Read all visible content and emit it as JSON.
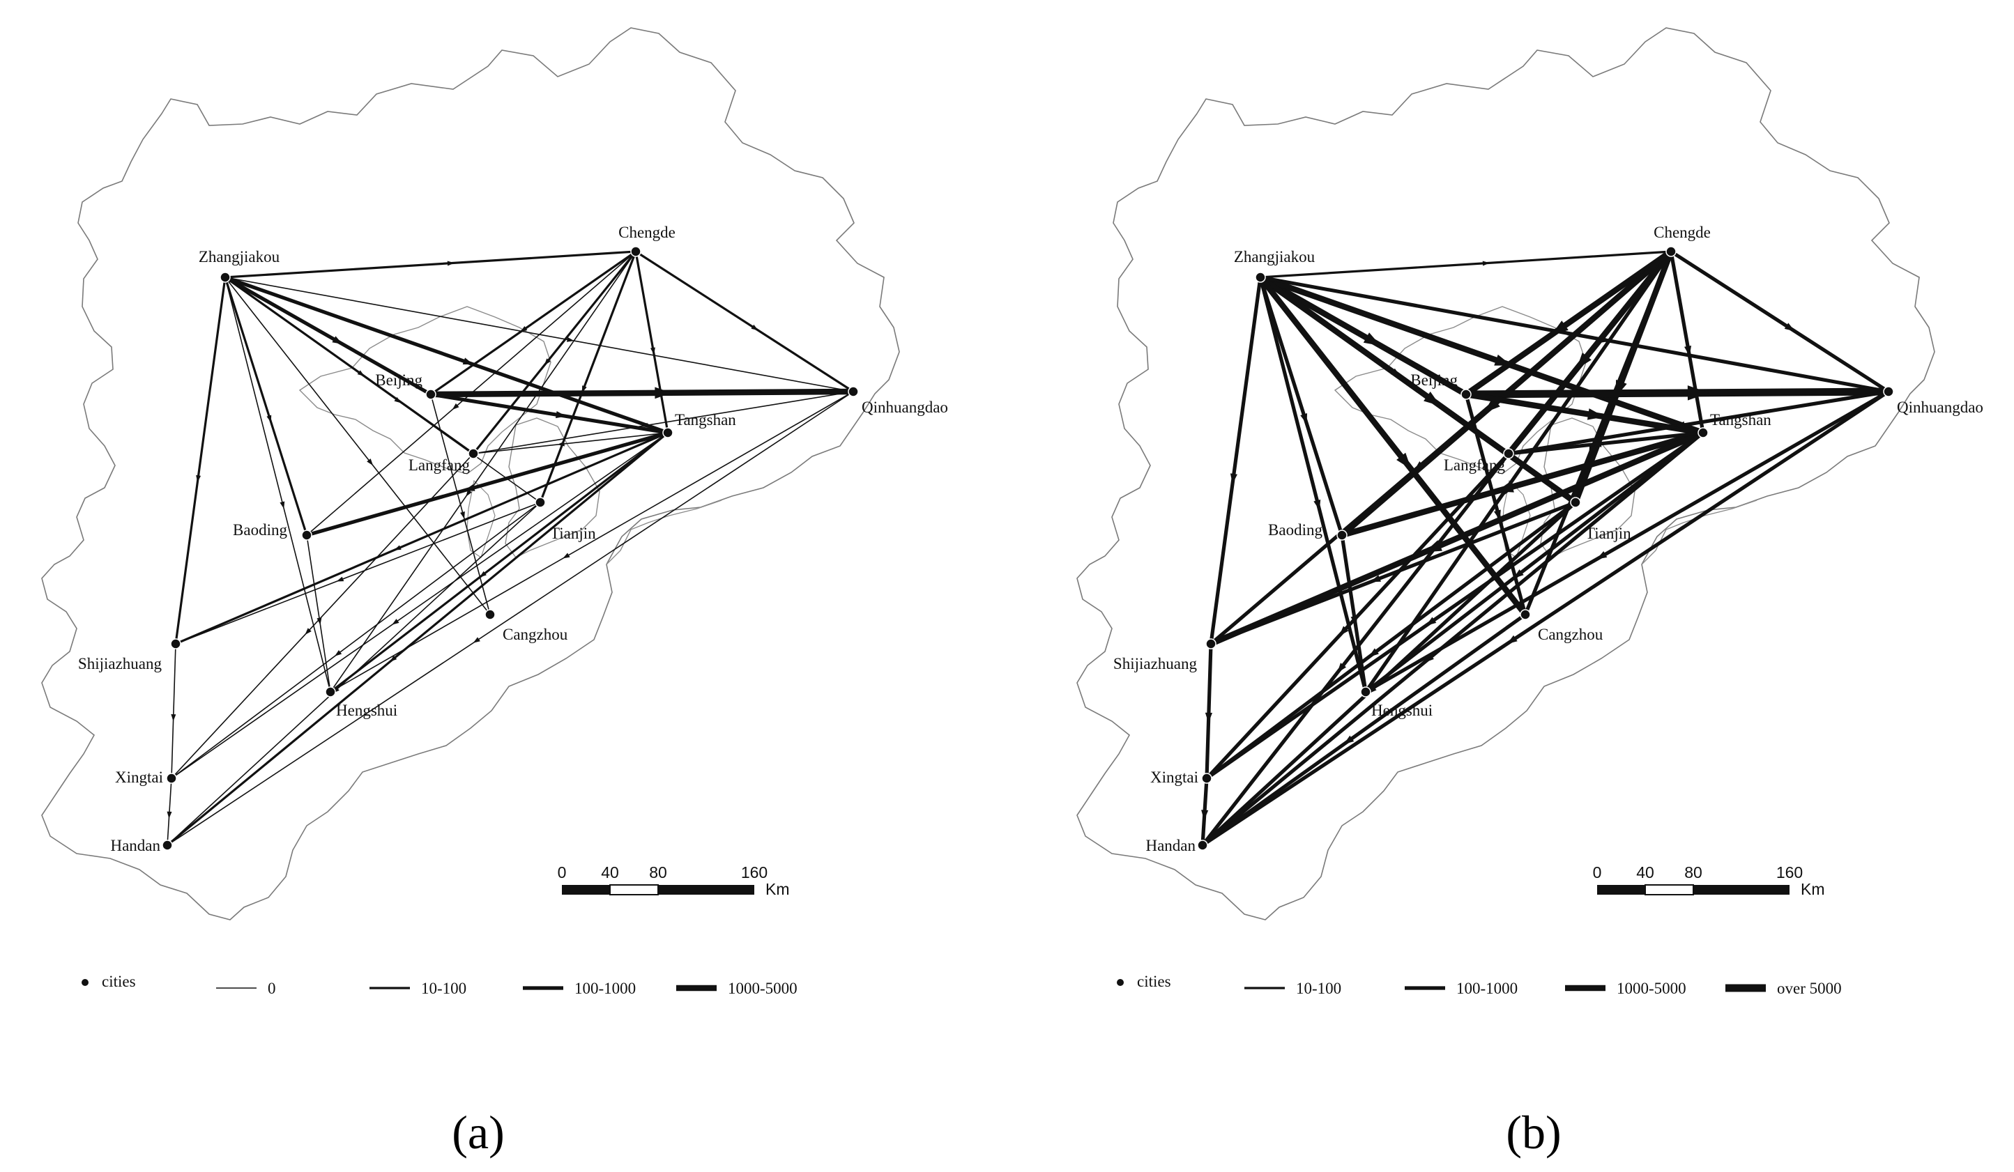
{
  "maps": [
    {
      "caption": "(a)",
      "cities": [
        "Zhangjiakou",
        "Chengde",
        "Beijing",
        "Tangshan",
        "Qinhuangdao",
        "Langfang",
        "Baoding",
        "Tianjin",
        "Cangzhou",
        "Shijiazhuang",
        "Hengshui",
        "Xingtai",
        "Handan"
      ],
      "flows": [
        {
          "from": "Zhangjiakou",
          "to": "Chengde",
          "class": "10-100"
        },
        {
          "from": "Zhangjiakou",
          "to": "Beijing",
          "class": "100-1000"
        },
        {
          "from": "Zhangjiakou",
          "to": "Tangshan",
          "class": "100-1000"
        },
        {
          "from": "Zhangjiakou",
          "to": "Qinhuangdao",
          "class": "0"
        },
        {
          "from": "Zhangjiakou",
          "to": "Langfang",
          "class": "10-100"
        },
        {
          "from": "Zhangjiakou",
          "to": "Baoding",
          "class": "10-100"
        },
        {
          "from": "Zhangjiakou",
          "to": "Tianjin",
          "class": "0"
        },
        {
          "from": "Zhangjiakou",
          "to": "Cangzhou",
          "class": "0"
        },
        {
          "from": "Zhangjiakou",
          "to": "Shijiazhuang",
          "class": "10-100"
        },
        {
          "from": "Zhangjiakou",
          "to": "Hengshui",
          "class": "0"
        },
        {
          "from": "Chengde",
          "to": "Qinhuangdao",
          "class": "10-100"
        },
        {
          "from": "Chengde",
          "to": "Tangshan",
          "class": "10-100"
        },
        {
          "from": "Chengde",
          "to": "Beijing",
          "class": "10-100"
        },
        {
          "from": "Chengde",
          "to": "Langfang",
          "class": "10-100"
        },
        {
          "from": "Chengde",
          "to": "Baoding",
          "class": "0"
        },
        {
          "from": "Chengde",
          "to": "Tianjin",
          "class": "10-100"
        },
        {
          "from": "Chengde",
          "to": "Hengshui",
          "class": "0"
        },
        {
          "from": "Beijing",
          "to": "Qinhuangdao",
          "class": "1000-5000"
        },
        {
          "from": "Beijing",
          "to": "Tangshan",
          "class": "100-1000"
        },
        {
          "from": "Beijing",
          "to": "Cangzhou",
          "class": "0"
        },
        {
          "from": "Tangshan",
          "to": "Baoding",
          "class": "100-1000"
        },
        {
          "from": "Tangshan",
          "to": "Shijiazhuang",
          "class": "10-100"
        },
        {
          "from": "Tangshan",
          "to": "Hengshui",
          "class": "10-100"
        },
        {
          "from": "Tangshan",
          "to": "Handan",
          "class": "10-100"
        },
        {
          "from": "Tangshan",
          "to": "Xingtai",
          "class": "0"
        },
        {
          "from": "Tangshan",
          "to": "Langfang",
          "class": "0"
        },
        {
          "from": "Qinhuangdao",
          "to": "Hengshui",
          "class": "0"
        },
        {
          "from": "Qinhuangdao",
          "to": "Handan",
          "class": "0"
        },
        {
          "from": "Qinhuangdao",
          "to": "Langfang",
          "class": "0"
        },
        {
          "from": "Tianjin",
          "to": "Handan",
          "class": "0"
        },
        {
          "from": "Tianjin",
          "to": "Xingtai",
          "class": "0"
        },
        {
          "from": "Tianjin",
          "to": "Shijiazhuang",
          "class": "0"
        },
        {
          "from": "Shijiazhuang",
          "to": "Xingtai",
          "class": "0"
        },
        {
          "from": "Xingtai",
          "to": "Handan",
          "class": "0"
        },
        {
          "from": "Langfang",
          "to": "Xingtai",
          "class": "0"
        },
        {
          "from": "Baoding",
          "to": "Hengshui",
          "class": "0"
        }
      ],
      "scale_labels": [
        "0",
        "40",
        "80",
        "160"
      ],
      "scale_unit": "Km",
      "legend": {
        "cities_label": "cities",
        "items": [
          {
            "label": "0",
            "class": "0"
          },
          {
            "label": "10-100",
            "class": "10-100"
          },
          {
            "label": "100-1000",
            "class": "100-1000"
          },
          {
            "label": "1000-5000",
            "class": "1000-5000"
          }
        ]
      }
    },
    {
      "caption": "(b)",
      "cities": [
        "Zhangjiakou",
        "Chengde",
        "Beijing",
        "Tangshan",
        "Qinhuangdao",
        "Langfang",
        "Baoding",
        "Tianjin",
        "Cangzhou",
        "Shijiazhuang",
        "Hengshui",
        "Xingtai",
        "Handan"
      ],
      "flows": [
        {
          "from": "Zhangjiakou",
          "to": "Chengde",
          "class": "10-100"
        },
        {
          "from": "Zhangjiakou",
          "to": "Beijing",
          "class": "1000-5000"
        },
        {
          "from": "Zhangjiakou",
          "to": "Tangshan",
          "class": "1000-5000"
        },
        {
          "from": "Zhangjiakou",
          "to": "Qinhuangdao",
          "class": "100-1000"
        },
        {
          "from": "Zhangjiakou",
          "to": "Langfang",
          "class": "100-1000"
        },
        {
          "from": "Zhangjiakou",
          "to": "Baoding",
          "class": "100-1000"
        },
        {
          "from": "Zhangjiakou",
          "to": "Tianjin",
          "class": "1000-5000"
        },
        {
          "from": "Zhangjiakou",
          "to": "Cangzhou",
          "class": "1000-5000"
        },
        {
          "from": "Zhangjiakou",
          "to": "Shijiazhuang",
          "class": "100-1000"
        },
        {
          "from": "Zhangjiakou",
          "to": "Hengshui",
          "class": "100-1000"
        },
        {
          "from": "Chengde",
          "to": "Qinhuangdao",
          "class": "100-1000"
        },
        {
          "from": "Chengde",
          "to": "Tangshan",
          "class": "100-1000"
        },
        {
          "from": "Chengde",
          "to": "Beijing",
          "class": "1000-5000"
        },
        {
          "from": "Chengde",
          "to": "Langfang",
          "class": "1000-5000"
        },
        {
          "from": "Chengde",
          "to": "Baoding",
          "class": "1000-5000"
        },
        {
          "from": "Chengde",
          "to": "Tianjin",
          "class": "1000-5000"
        },
        {
          "from": "Chengde",
          "to": "Hengshui",
          "class": "100-1000"
        },
        {
          "from": "Chengde",
          "to": "Cangzhou",
          "class": "100-1000"
        },
        {
          "from": "Chengde",
          "to": "Shijiazhuang",
          "class": "100-1000"
        },
        {
          "from": "Beijing",
          "to": "Qinhuangdao",
          "class": "over 5000"
        },
        {
          "from": "Beijing",
          "to": "Tangshan",
          "class": "1000-5000"
        },
        {
          "from": "Beijing",
          "to": "Cangzhou",
          "class": "100-1000"
        },
        {
          "from": "Tangshan",
          "to": "Baoding",
          "class": "1000-5000"
        },
        {
          "from": "Tangshan",
          "to": "Shijiazhuang",
          "class": "1000-5000"
        },
        {
          "from": "Tangshan",
          "to": "Hengshui",
          "class": "100-1000"
        },
        {
          "from": "Tangshan",
          "to": "Handan",
          "class": "100-1000"
        },
        {
          "from": "Tangshan",
          "to": "Xingtai",
          "class": "100-1000"
        },
        {
          "from": "Tangshan",
          "to": "Langfang",
          "class": "100-1000"
        },
        {
          "from": "Qinhuangdao",
          "to": "Hengshui",
          "class": "100-1000"
        },
        {
          "from": "Qinhuangdao",
          "to": "Handan",
          "class": "100-1000"
        },
        {
          "from": "Qinhuangdao",
          "to": "Langfang",
          "class": "100-1000"
        },
        {
          "from": "Tianjin",
          "to": "Handan",
          "class": "100-1000"
        },
        {
          "from": "Tianjin",
          "to": "Xingtai",
          "class": "100-1000"
        },
        {
          "from": "Tianjin",
          "to": "Shijiazhuang",
          "class": "100-1000"
        },
        {
          "from": "Shijiazhuang",
          "to": "Xingtai",
          "class": "100-1000"
        },
        {
          "from": "Xingtai",
          "to": "Handan",
          "class": "100-1000"
        },
        {
          "from": "Langfang",
          "to": "Xingtai",
          "class": "100-1000"
        },
        {
          "from": "Langfang",
          "to": "Handan",
          "class": "100-1000"
        },
        {
          "from": "Baoding",
          "to": "Hengshui",
          "class": "100-1000"
        },
        {
          "from": "Cangzhou",
          "to": "Handan",
          "class": "100-1000"
        }
      ],
      "scale_labels": [
        "0",
        "40",
        "80",
        "160"
      ],
      "scale_unit": "Km",
      "legend": {
        "cities_label": "cities",
        "items": [
          {
            "label": "10-100",
            "class": "10-100"
          },
          {
            "label": "100-1000",
            "class": "100-1000"
          },
          {
            "label": "1000-5000",
            "class": "1000-5000"
          },
          {
            "label": "over 5000",
            "class": "over 5000"
          }
        ]
      }
    }
  ]
}
